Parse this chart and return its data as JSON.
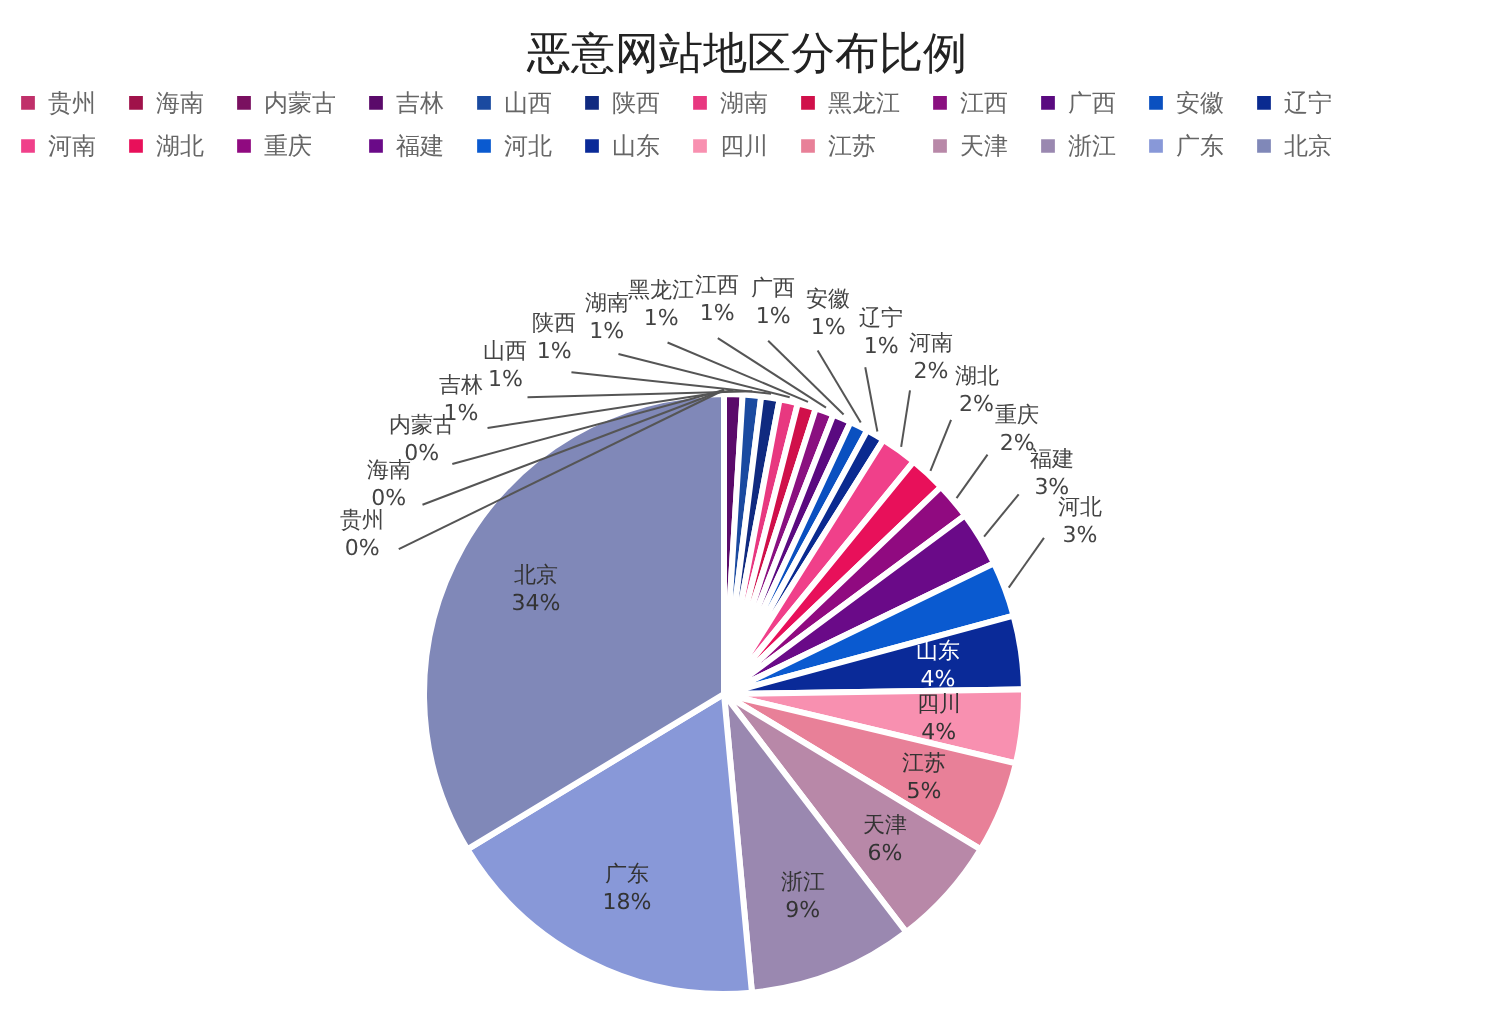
{
  "chart_data": {
    "type": "pie",
    "title": "恶意网站地区分布比例",
    "categories": [
      "贵州",
      "海南",
      "内蒙古",
      "吉林",
      "山西",
      "陕西",
      "湖南",
      "黑龙江",
      "江西",
      "广西",
      "安徽",
      "辽宁",
      "河南",
      "湖北",
      "重庆",
      "福建",
      "河北",
      "山东",
      "四川",
      "江苏",
      "天津",
      "浙江",
      "广东",
      "北京"
    ],
    "values": [
      0,
      0,
      0,
      1,
      1,
      1,
      1,
      1,
      1,
      1,
      1,
      1,
      2,
      2,
      2,
      3,
      3,
      4,
      4,
      5,
      6,
      9,
      18,
      34
    ],
    "value_labels": [
      "0%",
      "0%",
      "0%",
      "1%",
      "1%",
      "1%",
      "1%",
      "1%",
      "1%",
      "1%",
      "1%",
      "1%",
      "2%",
      "2%",
      "2%",
      "3%",
      "3%",
      "4%",
      "4%",
      "5%",
      "6%",
      "9%",
      "18%",
      "34%"
    ],
    "colors": [
      "#c0306a",
      "#a0124a",
      "#7a1060",
      "#5a0a6a",
      "#1a4aa0",
      "#102a80",
      "#e83880",
      "#d0104a",
      "#8a1080",
      "#5a0a80",
      "#0a50c0",
      "#0a2a90",
      "#f0408a",
      "#e8105a",
      "#900a80",
      "#6a0a88",
      "#0a5ad0",
      "#0a2a98",
      "#f890b0",
      "#e88098",
      "#b888a8",
      "#9a88b0",
      "#8898d8",
      "#8088b8"
    ],
    "legend": "top"
  }
}
